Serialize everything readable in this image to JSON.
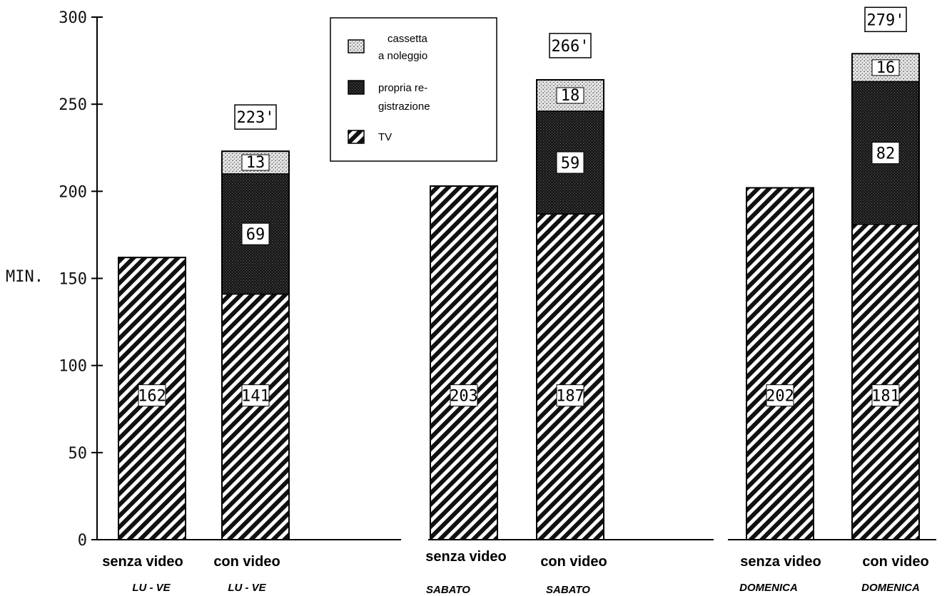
{
  "chart_data": {
    "type": "bar",
    "stacked": true,
    "ylabel": "MIN.",
    "ylim": [
      0,
      300
    ],
    "yticks": [
      0,
      50,
      100,
      150,
      200,
      250,
      300
    ],
    "ytick_labels": [
      "0",
      "50",
      "100",
      "150",
      "200",
      "250",
      "300"
    ],
    "categories": [
      {
        "main": "senza video",
        "sub": "LU - VE"
      },
      {
        "main": "con video",
        "sub": "LU - VE"
      },
      {
        "main": "senza video",
        "sub": "SABATO"
      },
      {
        "main": "con video",
        "sub": "SABATO"
      },
      {
        "main": "senza video",
        "sub": "DOMENICA"
      },
      {
        "main": "con video",
        "sub": "DOMENICA"
      }
    ],
    "series": [
      {
        "name": "TV",
        "values": [
          162,
          141,
          203,
          187,
          202,
          181
        ]
      },
      {
        "name": "propria re- gistrazione",
        "values": [
          0,
          69,
          0,
          59,
          0,
          82
        ]
      },
      {
        "name": "cassetta a noleggio",
        "values": [
          0,
          13,
          0,
          18,
          0,
          16
        ]
      }
    ],
    "segment_labels": [
      [
        "162",
        null,
        null
      ],
      [
        "141",
        "69",
        "13"
      ],
      [
        "203",
        null,
        null
      ],
      [
        "187",
        "59",
        "18"
      ],
      [
        "202",
        null,
        null
      ],
      [
        "181",
        "82",
        "16"
      ]
    ],
    "totals": [
      null,
      "223'",
      null,
      "266'",
      null,
      "279'"
    ],
    "legend": {
      "placement": "top-center",
      "items": [
        {
          "key": "cassetta",
          "lines": [
            "cassetta",
            "a noleggio"
          ]
        },
        {
          "key": "propria",
          "lines": [
            "propria re-",
            "gistrazione"
          ]
        },
        {
          "key": "tv",
          "lines": [
            "TV"
          ]
        }
      ]
    },
    "grid": false
  }
}
